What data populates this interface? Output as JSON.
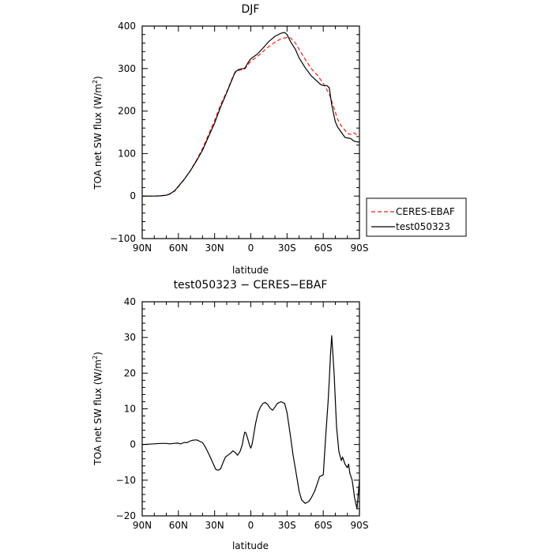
{
  "chart_data": [
    {
      "type": "line",
      "title": "DJF",
      "xlabel": "latitude",
      "ylabel": "TOA net SW flux (W/m",
      "ylabel_sup": "2",
      "ylabel_end": ")",
      "xlim": [
        90,
        -90
      ],
      "ylim": [
        -100,
        400
      ],
      "xticks": [
        90,
        60,
        30,
        0,
        -30,
        -60,
        -90
      ],
      "xtick_labels": [
        "90N",
        "60N",
        "30N",
        "0",
        "30S",
        "60S",
        "90S"
      ],
      "yticks": [
        -100,
        0,
        100,
        200,
        300,
        400
      ],
      "ytick_labels": [
        "−100",
        "0",
        "100",
        "200",
        "300",
        "400"
      ],
      "legend_position": "right-outside",
      "series": [
        {
          "name": "CERES-EBAF",
          "color": "#e8241a",
          "dash": "dashed",
          "x": [
            90,
            80,
            75,
            70,
            67,
            63,
            60,
            55,
            50,
            45,
            40,
            35,
            30,
            25,
            20,
            15,
            13,
            10,
            5,
            2,
            0,
            -5,
            -10,
            -15,
            -20,
            -25,
            -30,
            -33,
            -37,
            -40,
            -45,
            -50,
            -55,
            -60,
            -65,
            -68,
            -72,
            -75,
            -78,
            -80,
            -83,
            -85,
            -87,
            -90
          ],
          "y": [
            0,
            0,
            0.5,
            2,
            5,
            12,
            22,
            40,
            60,
            85,
            112,
            145,
            178,
            215,
            245,
            280,
            290,
            296,
            299,
            310,
            318,
            327,
            340,
            352,
            362,
            370,
            373,
            372,
            360,
            345,
            322,
            300,
            285,
            265,
            240,
            215,
            180,
            165,
            155,
            147,
            145,
            149,
            146,
            138
          ]
        },
        {
          "name": "test050323",
          "color": "#000000",
          "dash": "solid",
          "x": [
            90,
            80,
            75,
            70,
            67,
            63,
            60,
            55,
            50,
            45,
            40,
            35,
            30,
            25,
            20,
            15,
            13,
            10,
            5,
            2,
            0,
            -5,
            -10,
            -15,
            -20,
            -25,
            -28,
            -30,
            -33,
            -37,
            -40,
            -45,
            -50,
            -55,
            -58,
            -60,
            -63,
            -65,
            -67,
            -70,
            -72,
            -75,
            -78,
            -80,
            -83,
            -85,
            -87,
            -90
          ],
          "y": [
            0,
            0,
            0.5,
            2,
            5,
            13,
            23,
            40,
            60,
            83,
            108,
            140,
            172,
            210,
            243,
            278,
            292,
            298,
            301,
            315,
            323,
            333,
            348,
            364,
            376,
            383,
            385,
            380,
            363,
            345,
            325,
            302,
            283,
            270,
            262,
            260,
            260,
            255,
            215,
            175,
            162,
            150,
            138,
            137,
            135,
            130,
            128,
            127
          ]
        }
      ]
    },
    {
      "type": "line",
      "title": "test050323 − CERES−EBAF",
      "xlabel": "latitude",
      "ylabel": "TOA net SW flux (W/m",
      "ylabel_sup": "2",
      "ylabel_end": ")",
      "xlim": [
        90,
        -90
      ],
      "ylim": [
        -20,
        40
      ],
      "xticks": [
        90,
        60,
        30,
        0,
        -30,
        -60,
        -90
      ],
      "xtick_labels": [
        "90N",
        "60N",
        "30N",
        "0",
        "30S",
        "60S",
        "90S"
      ],
      "yticks": [
        -20,
        -10,
        0,
        10,
        20,
        30,
        40
      ],
      "ytick_labels": [
        "−20",
        "−10",
        "0",
        "10",
        "20",
        "30",
        "40"
      ],
      "series": [
        {
          "color": "#000000",
          "dash": "solid",
          "x": [
            90,
            80,
            75,
            70,
            67,
            64,
            61,
            58,
            55,
            53,
            50,
            48,
            45,
            43,
            40,
            38,
            35,
            33,
            31,
            29,
            27,
            25,
            23,
            21,
            19,
            17,
            15,
            13,
            11,
            9,
            7,
            6,
            5,
            4,
            2,
            1,
            0,
            -1,
            -2,
            -4,
            -6,
            -8,
            -10,
            -12,
            -14,
            -16,
            -18,
            -20,
            -22,
            -25,
            -28,
            -30,
            -33,
            -35,
            -38,
            -40,
            -42,
            -45,
            -48,
            -50,
            -53,
            -55,
            -57,
            -60,
            -62,
            -64,
            -65,
            -66,
            -67,
            -69,
            -71,
            -73,
            -75,
            -76,
            -78,
            -80,
            -81,
            -82,
            -84,
            -86,
            -88,
            -90
          ],
          "y": [
            0,
            0.2,
            0.3,
            0.3,
            0.2,
            0.3,
            0.4,
            0.2,
            0.6,
            0.5,
            1.0,
            1.2,
            1.3,
            1.0,
            0.5,
            -0.5,
            -2.5,
            -4.0,
            -5.5,
            -7.0,
            -7.2,
            -6.8,
            -5.0,
            -3.5,
            -3.0,
            -2.5,
            -1.8,
            -2.2,
            -3.0,
            -2.0,
            0.0,
            2.0,
            3.5,
            3.2,
            1.0,
            -0.3,
            -1.0,
            0.0,
            2.0,
            6.0,
            9.0,
            10.5,
            11.5,
            11.8,
            11.2,
            10.2,
            9.6,
            10.5,
            11.5,
            12.0,
            11.5,
            9.0,
            2.0,
            -3.0,
            -9.0,
            -13.0,
            -15.5,
            -16.5,
            -16.0,
            -15.0,
            -13.0,
            -11.0,
            -9.0,
            -8.5,
            2.0,
            12.0,
            18.0,
            25.0,
            30.5,
            20.0,
            5.0,
            -2.0,
            -4.5,
            -3.5,
            -5.5,
            -6.5,
            -5.5,
            -8.0,
            -10.0,
            -15.0,
            -18.0,
            -10.0
          ]
        }
      ]
    }
  ]
}
